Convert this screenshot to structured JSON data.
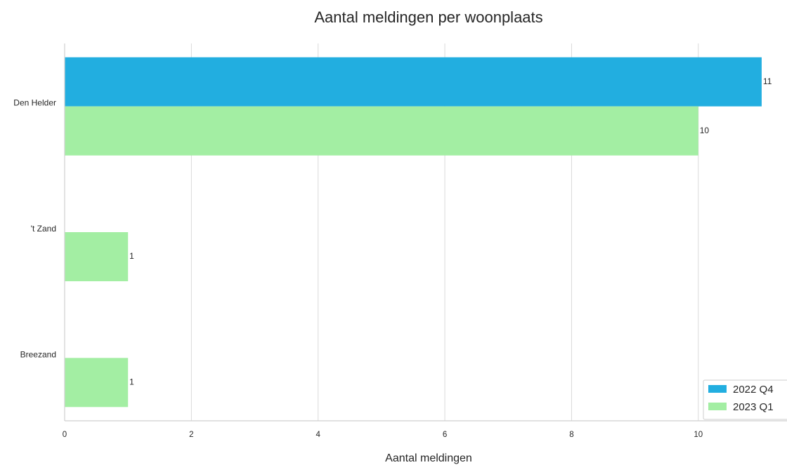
{
  "chart_data": {
    "type": "bar",
    "orientation": "horizontal",
    "title": "Aantal meldingen per woonplaats",
    "xlabel": "Aantal meldingen",
    "ylabel": "",
    "categories": [
      "Den Helder",
      "'t Zand",
      "Breezand"
    ],
    "series": [
      {
        "name": "2022 Q4",
        "color": "#22aee0",
        "values": [
          11,
          null,
          null
        ]
      },
      {
        "name": "2023 Q1",
        "color": "#a3eea3",
        "values": [
          10,
          1,
          1
        ]
      }
    ],
    "data_labels": [
      [
        "11",
        "",
        ""
      ],
      [
        "10",
        "1",
        "1"
      ]
    ],
    "xlim": [
      0,
      11.4
    ],
    "xticks": [
      0,
      2,
      4,
      6,
      8,
      10
    ],
    "grid": "vertical",
    "legend_position": "bottom-right"
  }
}
